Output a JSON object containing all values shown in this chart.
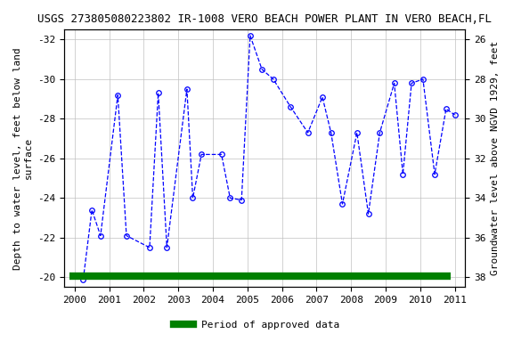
{
  "title": "USGS 273805080223802 IR-1008 VERO BEACH POWER PLANT IN VERO BEACH,FL",
  "ylabel_left": "Depth to water level, feet below land\nsurface",
  "ylabel_right": "Groundwater level above NGVD 1929, feet",
  "bg_color": "#ffffff",
  "plot_bg_color": "#ffffff",
  "grid_color": "#c0c0c0",
  "line_color": "#0000ff",
  "marker_color": "#0000ff",
  "approved_bar_color": "#008000",
  "ylim_left": [
    -19.5,
    -32.5
  ],
  "ylim_right": [
    38.5,
    25.5
  ],
  "xlim": [
    1999.7,
    2011.3
  ],
  "xticks": [
    2000,
    2001,
    2002,
    2003,
    2004,
    2005,
    2006,
    2007,
    2008,
    2009,
    2010,
    2011
  ],
  "yticks_left": [
    -20,
    -22,
    -24,
    -26,
    -28,
    -30,
    -32
  ],
  "yticks_right": [
    38,
    36,
    34,
    32,
    30,
    28,
    26
  ],
  "x_data": [
    2000.25,
    2000.5,
    2000.75,
    2001.25,
    2001.5,
    2002.17,
    2002.42,
    2002.67,
    2003.25,
    2003.42,
    2003.67,
    2004.25,
    2004.5,
    2004.83,
    2005.08,
    2005.42,
    2005.75,
    2006.25,
    2006.75,
    2007.17,
    2007.42,
    2007.75,
    2008.17,
    2008.5,
    2008.83,
    2009.25,
    2009.5,
    2009.75,
    2010.08,
    2010.42,
    2010.75,
    2011.0
  ],
  "y_data": [
    -19.9,
    -23.4,
    -22.1,
    -29.2,
    -22.1,
    -21.5,
    -29.3,
    -21.5,
    -29.5,
    -24.0,
    -26.2,
    -26.2,
    -24.0,
    -23.9,
    -32.2,
    -30.5,
    -30.0,
    -28.6,
    -27.3,
    -29.1,
    -27.3,
    -23.7,
    -27.3,
    -23.2,
    -27.3,
    -29.8,
    -25.2,
    -29.8,
    -30.0,
    -25.2,
    -28.5,
    -28.2
  ],
  "approved_bar_y": -20.05,
  "approved_bar_xstart": 1999.85,
  "approved_bar_xend": 2010.88,
  "legend_label": "Period of approved data",
  "title_fontsize": 9,
  "axis_label_fontsize": 8,
  "tick_fontsize": 8
}
